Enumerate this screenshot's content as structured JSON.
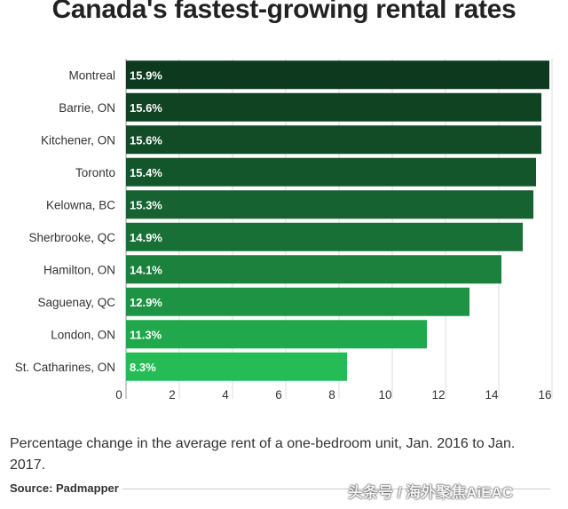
{
  "title": "Canada's fastest-growing rental rates",
  "subtitle": "Percentage change in the average rent of a one-bedroom unit, Jan. 2016 to Jan. 2017.",
  "source": "Source: Padmapper",
  "watermark": "头条号 / 海外聚焦AiEAC",
  "chart_data": {
    "type": "bar",
    "orientation": "horizontal",
    "title": "Canada's fastest-growing rental rates",
    "xlabel": "",
    "ylabel": "",
    "xlim": [
      0,
      16
    ],
    "x_ticks": [
      0,
      2,
      4,
      6,
      8,
      10,
      12,
      14,
      16
    ],
    "grid": true,
    "categories": [
      "Montreal",
      "Barrie, ON",
      "Kitchener, ON",
      "Toronto",
      "Kelowna, BC",
      "Sherbrooke, QC",
      "Hamilton, ON",
      "Saguenay, QC",
      "London, ON",
      "St. Catharines, ON"
    ],
    "values": [
      15.9,
      15.6,
      15.6,
      15.4,
      15.3,
      14.9,
      14.1,
      12.9,
      11.3,
      8.3
    ],
    "value_labels": [
      "15.9%",
      "15.6%",
      "15.6%",
      "15.4%",
      "15.3%",
      "14.9%",
      "14.1%",
      "12.9%",
      "11.3%",
      "8.3%"
    ],
    "bar_colors": [
      "#0d3a1e",
      "#0f4322",
      "#114c26",
      "#13562b",
      "#166231",
      "#187036",
      "#1b813d",
      "#1e9344",
      "#21a84c",
      "#26bc55"
    ]
  }
}
